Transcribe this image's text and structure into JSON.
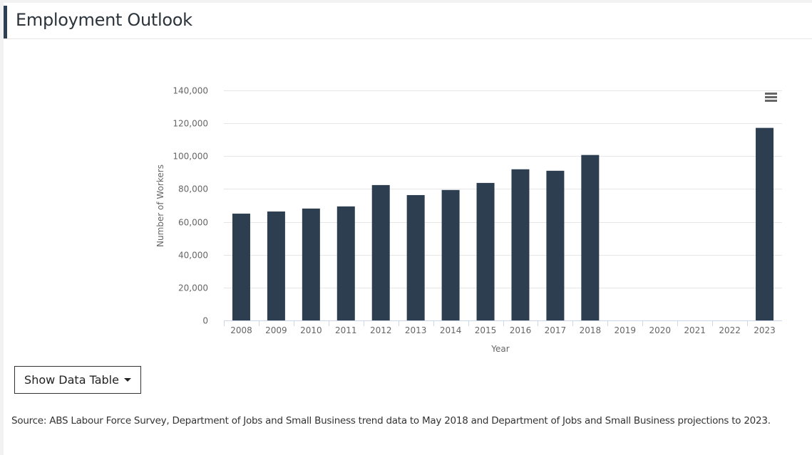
{
  "header": {
    "title": "Employment Outlook"
  },
  "chart_menu": {
    "icon": "hamburger-menu-icon"
  },
  "show_table_button": {
    "label": "Show Data Table",
    "icon": "caret-down-icon"
  },
  "source_text": "Source: ABS Labour Force Survey, Department of Jobs and Small Business trend data to May 2018 and Department of Jobs and Small Business projections to 2023.",
  "colors": {
    "bar": "#2c3e50",
    "grid": "#e6e6e6",
    "axis_text": "#666666"
  },
  "chart_data": {
    "type": "bar",
    "title": "",
    "xlabel": "Year",
    "ylabel": "Number of Workers",
    "categories": [
      "2008",
      "2009",
      "2010",
      "2011",
      "2012",
      "2013",
      "2014",
      "2015",
      "2016",
      "2017",
      "2018",
      "2019",
      "2020",
      "2021",
      "2022",
      "2023"
    ],
    "values": [
      65000,
      66300,
      68100,
      69400,
      82400,
      76300,
      79400,
      83700,
      92000,
      91100,
      100700,
      null,
      null,
      null,
      null,
      117200
    ],
    "ylim": [
      0,
      140000
    ],
    "yticks": [
      0,
      20000,
      40000,
      60000,
      80000,
      100000,
      120000,
      140000
    ],
    "ytick_labels": [
      "0",
      "20,000",
      "40,000",
      "60,000",
      "80,000",
      "100,000",
      "120,000",
      "140,000"
    ],
    "grid": true,
    "legend": "none"
  }
}
